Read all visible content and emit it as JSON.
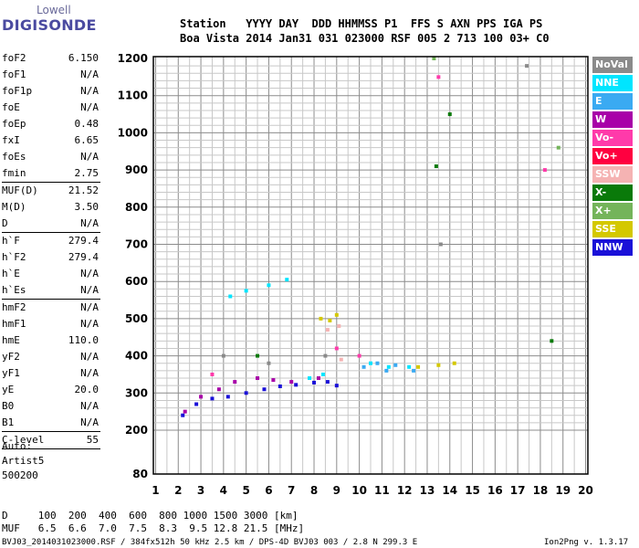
{
  "logo": {
    "line1": "Lowell",
    "line2": "DIGISONDE"
  },
  "header": {
    "row1": "Station   YYYY DAY  DDD HHMMSS P1  FFS S AXN PPS IGA PS",
    "row2": "Boa Vista 2014 Jan31 031 023000 RSF 005 2 713 100 03+ C0"
  },
  "params": [
    {
      "name": "foF2",
      "value": "6.150"
    },
    {
      "name": "foF1",
      "value": "N/A"
    },
    {
      "name": "foF1p",
      "value": "N/A"
    },
    {
      "name": "foE",
      "value": "N/A"
    },
    {
      "name": "foEp",
      "value": "0.48"
    },
    {
      "name": "fxI",
      "value": "6.65"
    },
    {
      "name": "foEs",
      "value": "N/A"
    },
    {
      "name": "fmin",
      "value": "2.75",
      "sep": true
    },
    {
      "name": "MUF(D)",
      "value": "21.52"
    },
    {
      "name": "M(D)",
      "value": "3.50"
    },
    {
      "name": "D",
      "value": "N/A",
      "sep": true
    },
    {
      "name": "h`F",
      "value": "279.4"
    },
    {
      "name": "h`F2",
      "value": "279.4"
    },
    {
      "name": "h`E",
      "value": "N/A"
    },
    {
      "name": "h`Es",
      "value": "N/A",
      "sep": true
    },
    {
      "name": "hmF2",
      "value": "N/A"
    },
    {
      "name": "hmF1",
      "value": "N/A"
    },
    {
      "name": "hmE",
      "value": "110.0"
    },
    {
      "name": "yF2",
      "value": "N/A"
    },
    {
      "name": "yF1",
      "value": "N/A"
    },
    {
      "name": "yE",
      "value": "20.0"
    },
    {
      "name": "B0",
      "value": "N/A"
    },
    {
      "name": "B1",
      "value": "N/A",
      "sep": true
    },
    {
      "name": "C-level",
      "value": "55",
      "sep": true
    }
  ],
  "auto": {
    "line1": "Auto:",
    "line2": "Artist5",
    "line3": "500200"
  },
  "legend": [
    {
      "label": "NoVal",
      "color": "#8a8a8a"
    },
    {
      "label": "NNE",
      "color": "#00e5ff"
    },
    {
      "label": "E",
      "color": "#3aaaf2"
    },
    {
      "label": "W",
      "color": "#a800a8"
    },
    {
      "label": "Vo-",
      "color": "#ff3aaa"
    },
    {
      "label": "Vo+",
      "color": "#ff0040"
    },
    {
      "label": "SSW",
      "color": "#f5b3b3"
    },
    {
      "label": "X-",
      "color": "#0a7a0a"
    },
    {
      "label": "X+",
      "color": "#74b45a"
    },
    {
      "label": "SSE",
      "color": "#d4c800"
    },
    {
      "label": "NNW",
      "color": "#1a10d8"
    }
  ],
  "footer": {
    "drow": "D     100  200  400  600  800 1000 1500 3000 [km]",
    "mrow": "MUF   6.5  6.6  7.0  7.5  8.3  9.5 12.8 21.5 [MHz]",
    "file": "BVJ03_2014031023000.RSF / 384fx512h 50 kHz 2.5 km / DPS-4D BVJ03 003 / 2.8 N 299.3 E",
    "version": "Ion2Png v. 1.3.17"
  },
  "chart_data": {
    "type": "scatter",
    "x_ticks": [
      1,
      2,
      3,
      4,
      5,
      6,
      7,
      8,
      9,
      10,
      11,
      12,
      13,
      14,
      15,
      16,
      17,
      18,
      19,
      20
    ],
    "y_ticks": [
      80,
      200,
      300,
      400,
      500,
      600,
      700,
      800,
      900,
      1000,
      1100,
      1200
    ],
    "xlim": [
      0.9,
      20.1
    ],
    "ylim": [
      80,
      1200
    ],
    "grid": true,
    "legend_position": "right",
    "series": [
      {
        "name": "NNW",
        "color": "#1a10d8",
        "points": [
          [
            2.2,
            240
          ],
          [
            2.8,
            270
          ],
          [
            3.5,
            285
          ],
          [
            4.2,
            290
          ],
          [
            5.0,
            300
          ],
          [
            5.8,
            310
          ],
          [
            6.5,
            318
          ],
          [
            7.2,
            322
          ],
          [
            8.0,
            328
          ],
          [
            8.6,
            330
          ],
          [
            9.0,
            320
          ]
        ]
      },
      {
        "name": "W",
        "color": "#a800a8",
        "points": [
          [
            2.3,
            250
          ],
          [
            3.0,
            290
          ],
          [
            3.8,
            310
          ],
          [
            4.5,
            330
          ],
          [
            5.5,
            340
          ],
          [
            6.2,
            335
          ],
          [
            7.0,
            330
          ],
          [
            8.2,
            340
          ]
        ]
      },
      {
        "name": "NNE",
        "color": "#00e5ff",
        "points": [
          [
            4.3,
            560
          ],
          [
            5.0,
            575
          ],
          [
            6.0,
            590
          ],
          [
            6.8,
            605
          ],
          [
            7.8,
            340
          ],
          [
            8.4,
            350
          ],
          [
            10.5,
            380
          ],
          [
            11.3,
            370
          ],
          [
            12.2,
            370
          ]
        ]
      },
      {
        "name": "E",
        "color": "#3aaaf2",
        "points": [
          [
            10.2,
            370
          ],
          [
            10.8,
            380
          ],
          [
            11.2,
            360
          ],
          [
            11.6,
            375
          ],
          [
            12.4,
            360
          ]
        ]
      },
      {
        "name": "SSE",
        "color": "#d4c800",
        "points": [
          [
            8.3,
            500
          ],
          [
            8.7,
            495
          ],
          [
            9.0,
            510
          ],
          [
            12.6,
            370
          ],
          [
            13.5,
            375
          ],
          [
            14.2,
            380
          ]
        ]
      },
      {
        "name": "SSW",
        "color": "#f5b3b3",
        "points": [
          [
            8.6,
            470
          ],
          [
            9.1,
            480
          ],
          [
            9.2,
            390
          ]
        ]
      },
      {
        "name": "Vo-",
        "color": "#ff3aaa",
        "points": [
          [
            3.5,
            350
          ],
          [
            9.0,
            420
          ],
          [
            10.0,
            400
          ],
          [
            13.5,
            1150
          ],
          [
            18.2,
            900
          ]
        ]
      },
      {
        "name": "X-",
        "color": "#0a7a0a",
        "points": [
          [
            5.5,
            400
          ],
          [
            13.4,
            910
          ],
          [
            14.0,
            1050
          ],
          [
            18.5,
            440
          ]
        ]
      },
      {
        "name": "X+",
        "color": "#74b45a",
        "points": [
          [
            13.3,
            1200
          ],
          [
            18.8,
            960
          ]
        ]
      },
      {
        "name": "NoVal",
        "color": "#8a8a8a",
        "points": [
          [
            4.0,
            400
          ],
          [
            6.0,
            380
          ],
          [
            8.5,
            400
          ],
          [
            13.6,
            700
          ],
          [
            17.4,
            1180
          ]
        ]
      }
    ]
  }
}
